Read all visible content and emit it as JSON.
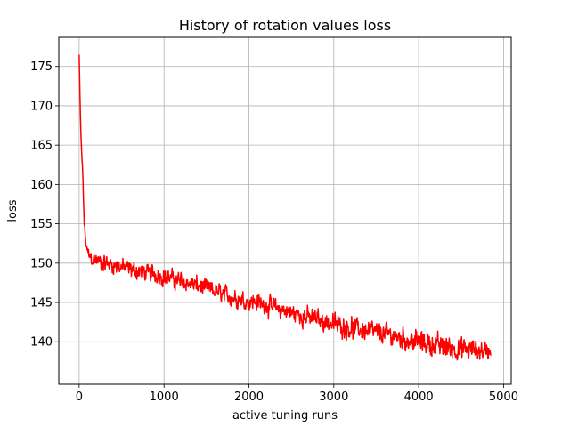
{
  "chart_data": {
    "type": "line",
    "title": "History of rotation values loss",
    "xlabel": "active tuning runs",
    "ylabel": "loss",
    "xlim": [
      -240,
      5090
    ],
    "ylim": [
      134.6,
      178.7
    ],
    "xticks": [
      0,
      1000,
      2000,
      3000,
      4000,
      5000
    ],
    "yticks": [
      140,
      145,
      150,
      155,
      160,
      165,
      170,
      175
    ],
    "grid": true,
    "legend": "none",
    "color": "#ff0000",
    "x_max": 4850,
    "trend": {
      "x": [
        0,
        10,
        20,
        30,
        40,
        50,
        60,
        80,
        100,
        130,
        160,
        200,
        300,
        400,
        500,
        600,
        700,
        800,
        900,
        1000,
        1100,
        1200,
        1300,
        1400,
        1500,
        1600,
        1700,
        1800,
        1900,
        2000,
        2100,
        2200,
        2300,
        2400,
        2500,
        2600,
        2700,
        2800,
        2900,
        3000,
        3100,
        3200,
        3300,
        3400,
        3500,
        3600,
        3700,
        3800,
        3900,
        4000,
        4100,
        4200,
        4300,
        4400,
        4500,
        4600,
        4700,
        4800,
        4850
      ],
      "y": [
        176.5,
        171,
        166.5,
        164,
        162,
        158.5,
        155,
        152.5,
        151.3,
        150.8,
        150.5,
        150.3,
        150.0,
        149.8,
        149.5,
        149.2,
        149.0,
        148.8,
        148.6,
        148.3,
        148.0,
        147.7,
        147.4,
        147.1,
        146.8,
        146.4,
        146.0,
        145.7,
        145.4,
        145.2,
        145.0,
        144.7,
        144.3,
        144.0,
        143.7,
        143.4,
        143.1,
        142.9,
        142.6,
        142.3,
        142.0,
        141.8,
        141.6,
        141.4,
        141.2,
        141.0,
        140.8,
        140.5,
        140.2,
        140.0,
        139.8,
        139.6,
        139.4,
        139.2,
        139.0,
        139.0,
        139.0,
        138.9,
        138.8
      ]
    },
    "noise_band": {
      "x": [
        0,
        100,
        200,
        500,
        1000,
        2000,
        3000,
        4000,
        4500,
        4850
      ],
      "amplitude": [
        0,
        0.9,
        1.2,
        1.2,
        1.2,
        1.3,
        1.4,
        1.5,
        1.6,
        1.4
      ]
    },
    "sample_step": 5
  }
}
